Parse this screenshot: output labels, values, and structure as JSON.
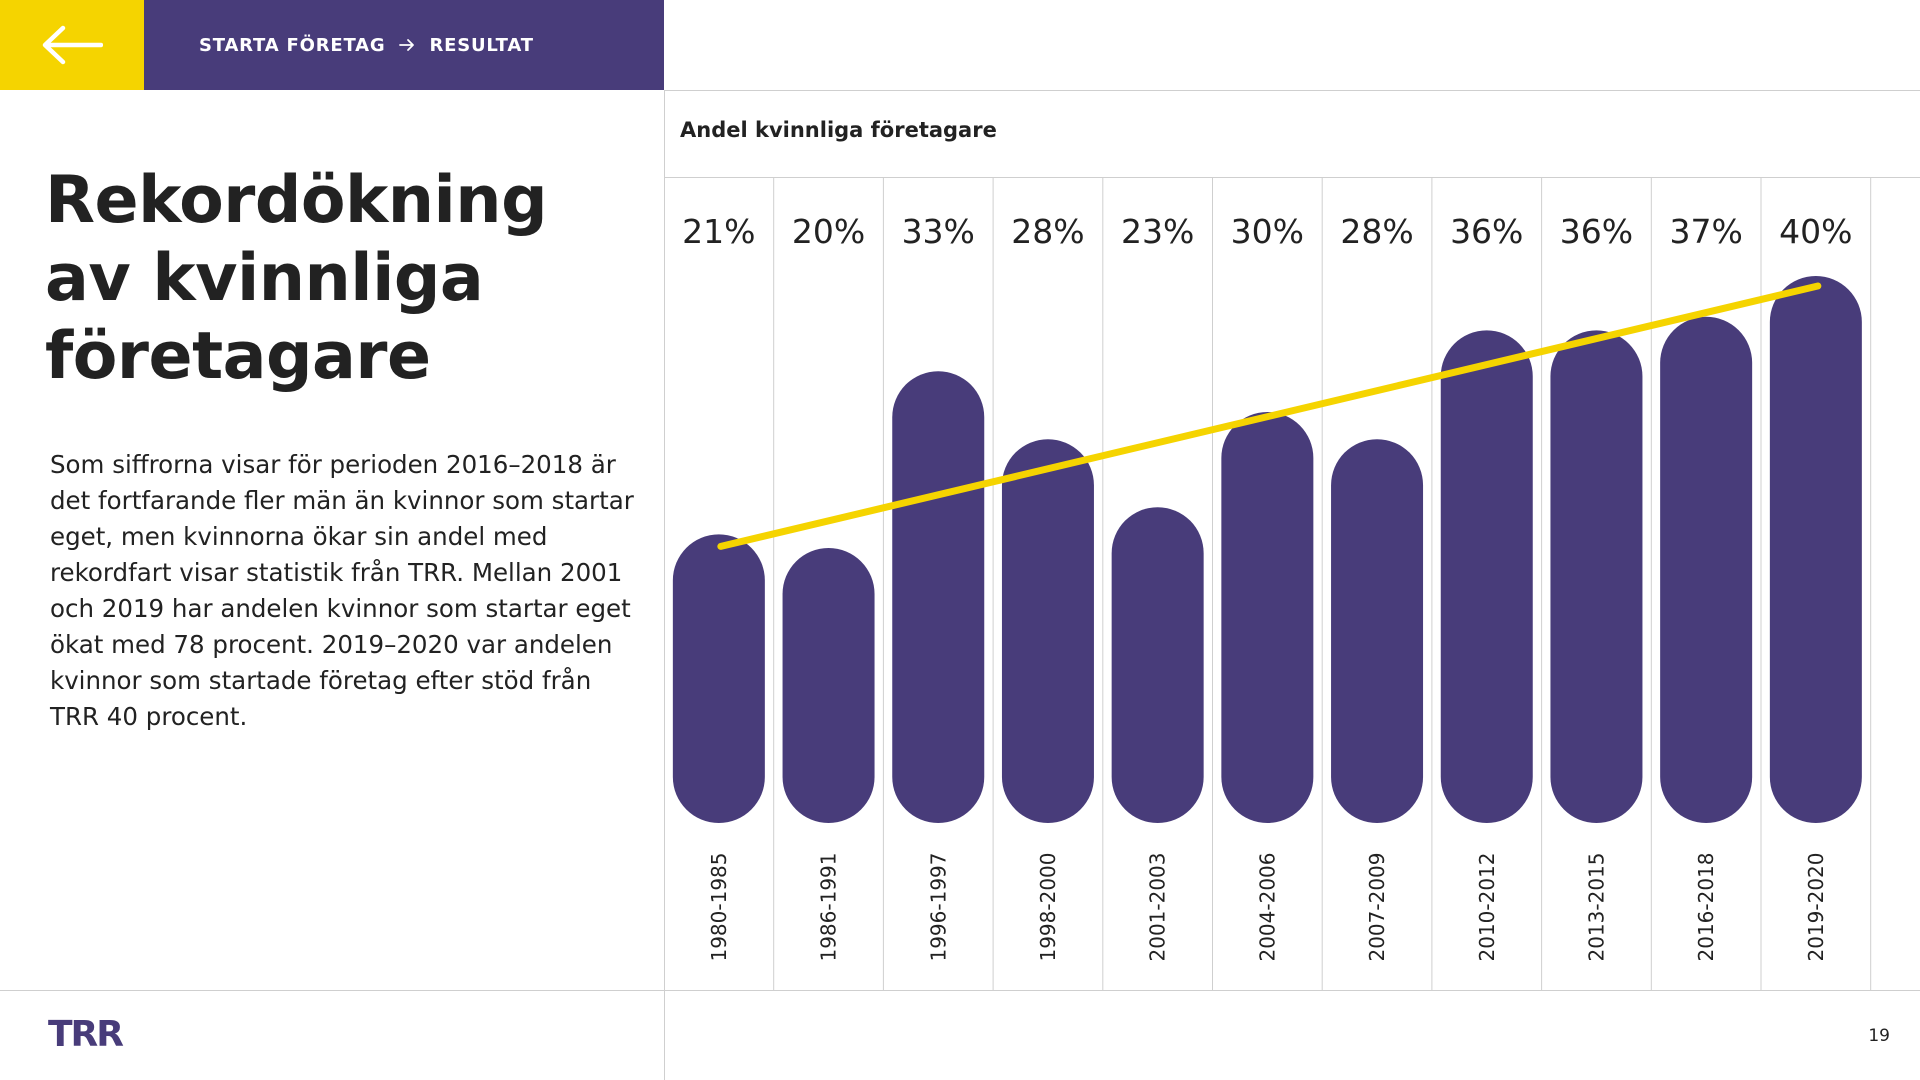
{
  "header": {
    "breadcrumb": [
      "STARTA FÖRETAG",
      "RESULTAT"
    ],
    "back_icon": "arrow-left-icon",
    "crumb_arrow_icon": "arrow-right-icon"
  },
  "title": "Rekordökning av kvinnliga företagare",
  "body_text": "Som siffrorna visar för perioden 2016–2018 är det fortfarande fler män än kvinnor som startar eget, men kvinnorna ökar sin andel med rekordfart visar statistik från TRR. Mellan 2001 och 2019 har andelen kvinnor som startar eget ökat med 78 procent. 2019–2020 var andelen kvinnor som startade företag efter stöd från TRR 40 procent.",
  "footer": {
    "logo": "TRR",
    "page_number": "19"
  },
  "colors": {
    "yellow": "#F5D400",
    "purple": "#483C7A",
    "text": "#222222",
    "grid": "#cfcfcf"
  },
  "chart_data": {
    "type": "bar",
    "title": "Andel kvinnliga företagare",
    "categories": [
      "1980-1985",
      "1986-1991",
      "1996-1997",
      "1998-2000",
      "2001-2003",
      "2004-2006",
      "2007-2009",
      "2010-2012",
      "2013-2015",
      "2016-2018",
      "2019-2020"
    ],
    "values": [
      21,
      20,
      33,
      28,
      23,
      30,
      28,
      36,
      36,
      37,
      40
    ],
    "value_labels": [
      "21%",
      "20%",
      "33%",
      "28%",
      "23%",
      "30%",
      "28%",
      "36%",
      "36%",
      "37%",
      "40%"
    ],
    "unit": "%",
    "trend_line": {
      "start": 21,
      "end": 40
    },
    "ylim": [
      0,
      40
    ],
    "grid": false,
    "legend": "none",
    "bar_color": "#483C7A",
    "trend_color": "#F5D400"
  }
}
